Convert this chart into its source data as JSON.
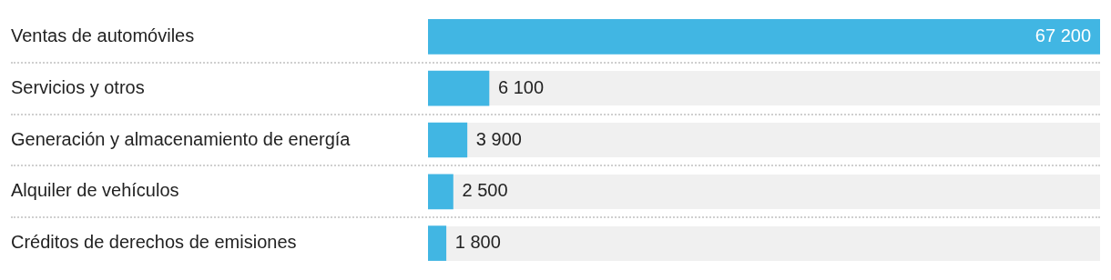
{
  "chart_data": {
    "type": "bar",
    "orientation": "horizontal",
    "categories": [
      "Ventas de automóviles",
      "Servicios y otros",
      "Generación y almacenamiento de energía",
      "Alquiler de vehículos",
      "Créditos de derechos de emisiones"
    ],
    "values": [
      67200,
      6100,
      3900,
      2500,
      1800
    ],
    "value_labels": [
      "67 200",
      "6 100",
      "3 900",
      "2 500",
      "1 800"
    ],
    "color": "#41b6e3",
    "grid": false,
    "legend": false
  }
}
